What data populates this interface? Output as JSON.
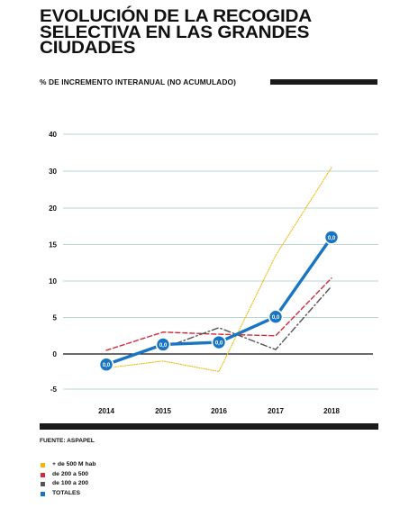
{
  "title": "EVOLUCIÓN DE LA RECOGIDA\nSELECTIVA EN LAS GRANDES\nCIUDADES",
  "subtitle": "% DE INCREMENTO INTERANUAL (NO ACUMULADO)",
  "source": "FUENTE: ASPAPEL",
  "chart_data": {
    "type": "line",
    "categories": [
      "2014",
      "2015",
      "2016",
      "2017",
      "2018"
    ],
    "y_ticks": [
      40,
      30,
      20,
      15,
      10,
      5,
      0,
      -5
    ],
    "series": [
      {
        "name": "+ de 500 M hab",
        "color": "#f2b705",
        "style": "dotted",
        "values": [
          -2.0,
          -1.0,
          -2.5,
          13.5,
          31.0
        ]
      },
      {
        "name": "de 200 a 500",
        "color": "#d6293d",
        "style": "dashed",
        "values": [
          0.5,
          3.0,
          2.7,
          2.5,
          10.4
        ]
      },
      {
        "name": "de 100 a 200",
        "color": "#555555",
        "style": "dashdot",
        "values": [
          null,
          0.8,
          3.6,
          0.6,
          9.3
        ]
      },
      {
        "name": "TOTALES",
        "color": "#1875c4",
        "style": "solid",
        "values": [
          -1.5,
          1.3,
          1.6,
          5.1,
          16.0
        ]
      }
    ],
    "point_labels": [
      "0,0",
      "0,0",
      "0,0",
      "0,0",
      "0,0"
    ],
    "grid": true,
    "legend_position": "bottom-left"
  }
}
